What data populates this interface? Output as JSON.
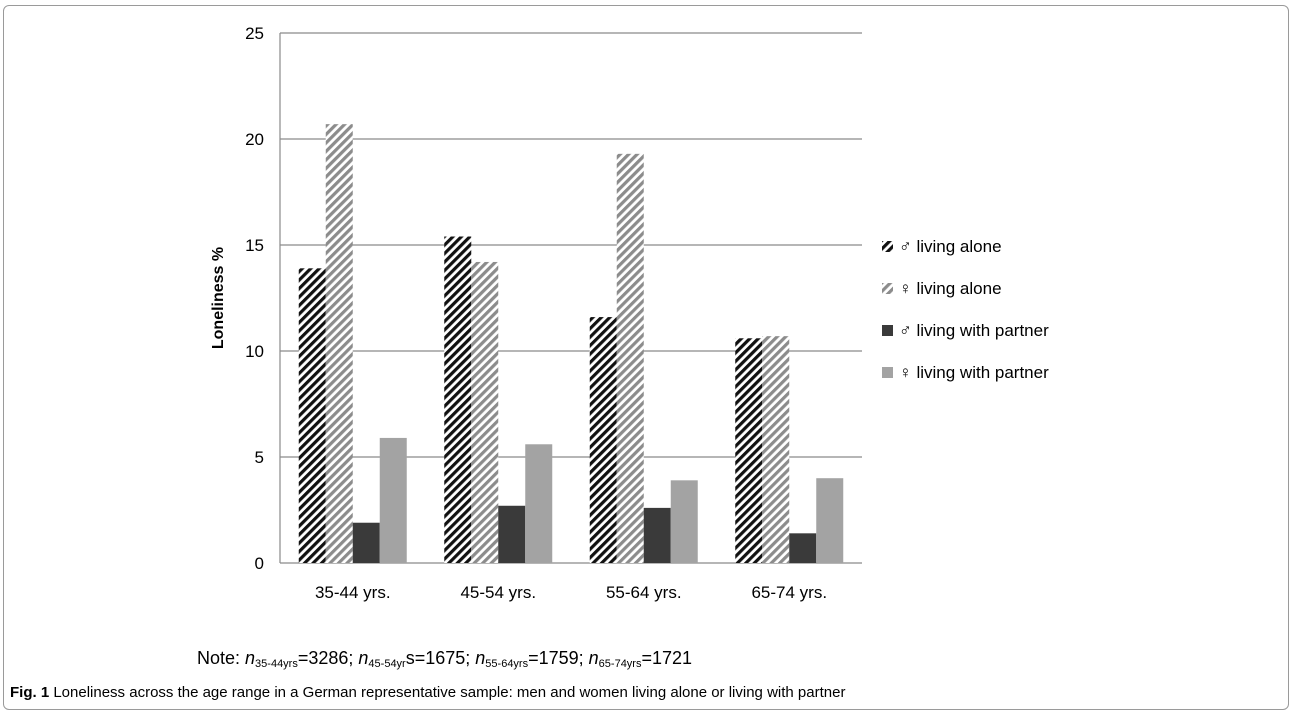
{
  "chart_data": {
    "type": "bar",
    "title": "",
    "xlabel": "",
    "ylabel": "Loneliness %",
    "ylim": [
      0,
      25
    ],
    "yticks": [
      "0",
      "5",
      "10",
      "15",
      "20",
      "25"
    ],
    "grid": true,
    "legend_position": "right",
    "categories": [
      "35-44 yrs.",
      "45-54 yrs.",
      "55-64 yrs.",
      "65-74 yrs."
    ],
    "series": [
      {
        "name": "♂ living alone",
        "values": [
          13.9,
          15.4,
          11.6,
          10.6
        ],
        "pattern": "dark-diagonal-hatch",
        "color": "#111111"
      },
      {
        "name": "♀ living alone",
        "values": [
          20.7,
          14.2,
          19.3,
          10.7
        ],
        "pattern": "light-diagonal-hatch",
        "color": "#8c8c8c"
      },
      {
        "name": "♂ living with partner",
        "values": [
          1.9,
          2.7,
          2.6,
          1.4
        ],
        "pattern": "solid",
        "color": "#3a3a3a"
      },
      {
        "name": "♀ living with partner",
        "values": [
          5.9,
          5.6,
          3.9,
          4.0
        ],
        "pattern": "solid",
        "color": "#a3a3a3"
      }
    ]
  },
  "note": {
    "prefix": "Note: ",
    "items": [
      {
        "n": "n",
        "sub": "35-44yrs",
        "eq": "=3286; "
      },
      {
        "n": "n",
        "sub": "45-54yr",
        "eq": "s=1675; "
      },
      {
        "n": "n",
        "sub": "55-64yrs",
        "eq": "=1759; "
      },
      {
        "n": "n",
        "sub": "65-74yrs",
        "eq": "=1721"
      }
    ]
  },
  "caption": {
    "label": "Fig. 1",
    "text": " Loneliness across the age range in a German representative sample: men and women living alone or living with partner"
  }
}
